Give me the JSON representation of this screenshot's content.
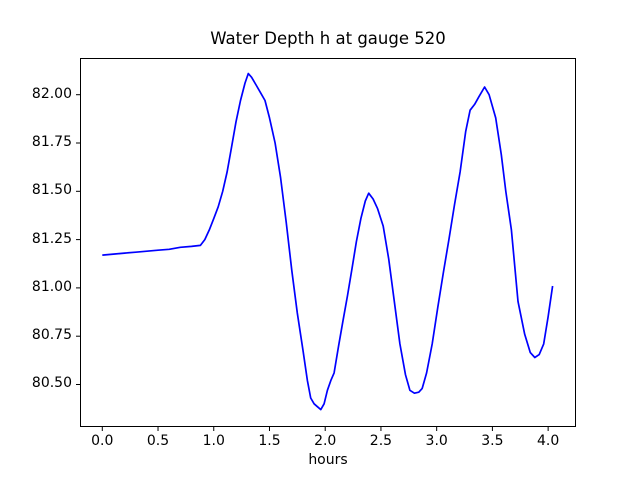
{
  "figure": {
    "background": "#ffffff",
    "text_color": "#000000"
  },
  "chart_data": {
    "type": "line",
    "title": "Water Depth h at gauge 520",
    "xlabel": "hours",
    "ylabel": "",
    "grid": false,
    "legend": "none",
    "axes_color": "#000000",
    "xlim": [
      -0.2,
      4.25
    ],
    "ylim": [
      80.28,
      82.19
    ],
    "xticks": {
      "values": [
        0.0,
        0.5,
        1.0,
        1.5,
        2.0,
        2.5,
        3.0,
        3.5,
        4.0
      ],
      "labels": [
        "0.0",
        "0.5",
        "1.0",
        "1.5",
        "2.0",
        "2.5",
        "3.0",
        "3.5",
        "4.0"
      ]
    },
    "yticks": {
      "values": [
        80.5,
        80.75,
        81.0,
        81.25,
        81.5,
        81.75,
        82.0
      ],
      "labels": [
        "80.50",
        "80.75",
        "81.00",
        "81.25",
        "81.50",
        "81.75",
        "82.00"
      ]
    },
    "series": [
      {
        "name": "water-depth-at-gauge-520",
        "color": "#0000ff",
        "line_width": 1.7,
        "x": [
          0.0,
          0.1,
          0.2,
          0.3,
          0.4,
          0.5,
          0.6,
          0.7,
          0.8,
          0.88,
          0.92,
          0.96,
          1.0,
          1.04,
          1.08,
          1.12,
          1.16,
          1.2,
          1.24,
          1.28,
          1.31,
          1.34,
          1.38,
          1.42,
          1.46,
          1.5,
          1.55,
          1.6,
          1.65,
          1.7,
          1.75,
          1.8,
          1.84,
          1.87,
          1.9,
          1.93,
          1.96,
          1.99,
          2.02,
          2.05,
          2.08,
          2.12,
          2.16,
          2.2,
          2.24,
          2.28,
          2.32,
          2.36,
          2.39,
          2.43,
          2.47,
          2.52,
          2.57,
          2.62,
          2.67,
          2.72,
          2.76,
          2.8,
          2.84,
          2.87,
          2.91,
          2.96,
          3.01,
          3.06,
          3.11,
          3.16,
          3.21,
          3.26,
          3.3,
          3.34,
          3.38,
          3.43,
          3.47,
          3.53,
          3.58,
          3.62,
          3.67,
          3.73,
          3.79,
          3.84,
          3.88,
          3.92,
          3.96,
          4.0,
          4.04
        ],
        "y": [
          81.17,
          81.175,
          81.18,
          81.185,
          81.19,
          81.195,
          81.2,
          81.21,
          81.215,
          81.22,
          81.25,
          81.3,
          81.36,
          81.42,
          81.5,
          81.6,
          81.73,
          81.86,
          81.97,
          82.06,
          82.11,
          82.09,
          82.05,
          82.01,
          81.97,
          81.88,
          81.75,
          81.57,
          81.34,
          81.09,
          80.87,
          80.68,
          80.52,
          80.43,
          80.4,
          80.385,
          80.37,
          80.4,
          80.47,
          80.52,
          80.56,
          80.7,
          80.83,
          80.96,
          81.1,
          81.24,
          81.36,
          81.45,
          81.49,
          81.46,
          81.41,
          81.32,
          81.15,
          80.93,
          80.71,
          80.55,
          80.47,
          80.455,
          80.46,
          80.48,
          80.56,
          80.71,
          80.9,
          81.08,
          81.25,
          81.43,
          81.6,
          81.81,
          81.92,
          81.95,
          81.99,
          82.04,
          82.0,
          81.88,
          81.69,
          81.5,
          81.3,
          80.93,
          80.76,
          80.665,
          80.64,
          80.655,
          80.71,
          80.85,
          81.01
        ]
      }
    ]
  }
}
